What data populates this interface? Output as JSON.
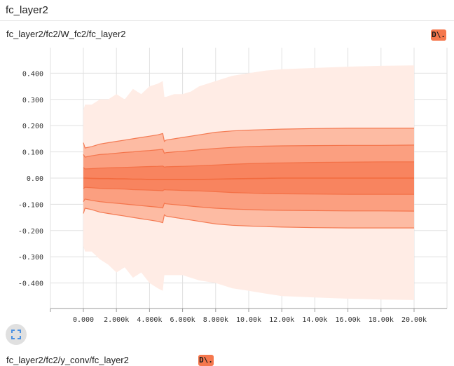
{
  "section": {
    "title": "fc_layer2"
  },
  "card": {
    "title": "fc_layer2/fc2/W_fc2/fc_layer2",
    "download_label": "D\\."
  },
  "next_card": {
    "title": "fc_layer2/fc2/y_conv/fc_layer2",
    "download_label": "D\\."
  },
  "icons": {
    "expand": "fullscreen-expand-icon"
  },
  "colors": {
    "band_outer": "#ffece5",
    "band_2": "#fdbba3",
    "band_3": "#fb9f80",
    "band_4": "#f8845f",
    "median": "#f26b3f",
    "icon_blue": "#4a90e2"
  },
  "chart_data": {
    "type": "area",
    "xlabel": "",
    "ylabel": "",
    "xlim": [
      0,
      20000
    ],
    "ylim": [
      -0.5,
      0.5
    ],
    "x_ticks": [
      "0.000",
      "2.000k",
      "4.000k",
      "6.000k",
      "8.000k",
      "10.00k",
      "12.00k",
      "14.00k",
      "16.00k",
      "18.00k",
      "20.00k"
    ],
    "y_ticks": [
      "0.400",
      "0.300",
      "0.200",
      "0.100",
      "0.00",
      "-0.100",
      "-0.200",
      "-0.300",
      "-0.400"
    ],
    "grid": true,
    "x": [
      0,
      100,
      500,
      1000,
      1500,
      2000,
      2500,
      3000,
      3500,
      4000,
      4500,
      4800,
      4900,
      5000,
      5500,
      6000,
      6500,
      7000,
      8000,
      9000,
      10000,
      11000,
      12000,
      14000,
      16000,
      18000,
      20000
    ],
    "series": [
      {
        "values": [
          0.26,
          0.28,
          0.28,
          0.3,
          0.3,
          0.32,
          0.3,
          0.34,
          0.32,
          0.35,
          0.36,
          0.37,
          0.31,
          0.31,
          0.32,
          0.32,
          0.33,
          0.35,
          0.37,
          0.39,
          0.4,
          0.41,
          0.415,
          0.42,
          0.425,
          0.428,
          0.43
        ]
      },
      {
        "values": [
          0.135,
          0.115,
          0.12,
          0.13,
          0.135,
          0.14,
          0.145,
          0.15,
          0.155,
          0.16,
          0.165,
          0.17,
          0.14,
          0.145,
          0.15,
          0.155,
          0.16,
          0.165,
          0.175,
          0.18,
          0.183,
          0.185,
          0.187,
          0.189,
          0.19,
          0.19,
          0.19
        ]
      },
      {
        "values": [
          0.09,
          0.08,
          0.085,
          0.09,
          0.092,
          0.095,
          0.098,
          0.1,
          0.103,
          0.105,
          0.108,
          0.11,
          0.095,
          0.097,
          0.1,
          0.102,
          0.105,
          0.108,
          0.113,
          0.117,
          0.12,
          0.122,
          0.123,
          0.124,
          0.125,
          0.125,
          0.126
        ]
      },
      {
        "values": [
          0.04,
          0.035,
          0.036,
          0.038,
          0.039,
          0.04,
          0.041,
          0.042,
          0.043,
          0.044,
          0.045,
          0.046,
          0.042,
          0.043,
          0.044,
          0.045,
          0.046,
          0.047,
          0.05,
          0.053,
          0.055,
          0.057,
          0.058,
          0.06,
          0.061,
          0.062,
          0.062
        ]
      },
      {
        "values": [
          0.0,
          0.0,
          -0.001,
          -0.002,
          -0.002,
          -0.003,
          -0.003,
          -0.004,
          -0.004,
          -0.005,
          -0.005,
          -0.005,
          -0.005,
          -0.005,
          -0.005,
          -0.005,
          -0.005,
          -0.005,
          -0.004,
          -0.003,
          -0.002,
          -0.001,
          0.0,
          0.0,
          0.0,
          0.0,
          0.0
        ]
      },
      {
        "values": [
          -0.04,
          -0.035,
          -0.037,
          -0.039,
          -0.04,
          -0.041,
          -0.042,
          -0.044,
          -0.045,
          -0.046,
          -0.047,
          -0.048,
          -0.044,
          -0.045,
          -0.046,
          -0.047,
          -0.048,
          -0.049,
          -0.052,
          -0.055,
          -0.057,
          -0.059,
          -0.06,
          -0.061,
          -0.062,
          -0.062,
          -0.062
        ]
      },
      {
        "values": [
          -0.09,
          -0.08,
          -0.085,
          -0.09,
          -0.093,
          -0.096,
          -0.099,
          -0.102,
          -0.105,
          -0.108,
          -0.111,
          -0.114,
          -0.096,
          -0.098,
          -0.101,
          -0.104,
          -0.107,
          -0.11,
          -0.115,
          -0.118,
          -0.12,
          -0.122,
          -0.123,
          -0.124,
          -0.125,
          -0.125,
          -0.126
        ]
      },
      {
        "values": [
          -0.135,
          -0.115,
          -0.12,
          -0.13,
          -0.135,
          -0.14,
          -0.145,
          -0.15,
          -0.155,
          -0.16,
          -0.165,
          -0.17,
          -0.14,
          -0.145,
          -0.15,
          -0.155,
          -0.16,
          -0.165,
          -0.175,
          -0.18,
          -0.183,
          -0.185,
          -0.187,
          -0.189,
          -0.19,
          -0.19,
          -0.19
        ]
      },
      {
        "values": [
          -0.26,
          -0.28,
          -0.28,
          -0.31,
          -0.33,
          -0.36,
          -0.34,
          -0.38,
          -0.36,
          -0.4,
          -0.42,
          -0.43,
          -0.37,
          -0.37,
          -0.37,
          -0.37,
          -0.38,
          -0.39,
          -0.4,
          -0.42,
          -0.43,
          -0.44,
          -0.45,
          -0.455,
          -0.46,
          -0.463,
          -0.465
        ]
      }
    ]
  }
}
